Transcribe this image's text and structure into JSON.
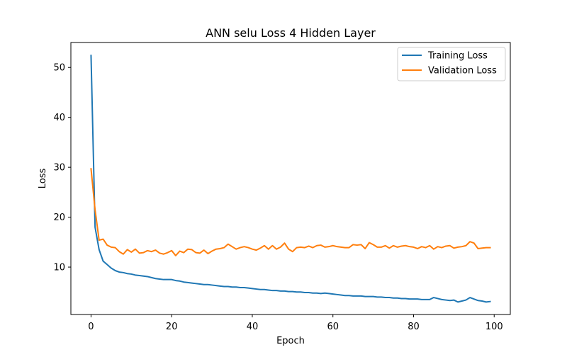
{
  "chart_data": {
    "type": "line",
    "title": "ANN selu Loss 4 Hidden Layer",
    "xlabel": "Epoch",
    "ylabel": "Loss",
    "xlim": [
      -5,
      104
    ],
    "ylim": [
      0.5,
      55
    ],
    "xticks": [
      0,
      20,
      40,
      60,
      80,
      100
    ],
    "yticks": [
      10,
      20,
      30,
      40,
      50
    ],
    "grid": false,
    "legend_position": "top-right",
    "x": [
      0,
      1,
      2,
      3,
      4,
      5,
      6,
      7,
      8,
      9,
      10,
      11,
      12,
      13,
      14,
      15,
      16,
      17,
      18,
      19,
      20,
      21,
      22,
      23,
      24,
      25,
      26,
      27,
      28,
      29,
      30,
      31,
      32,
      33,
      34,
      35,
      36,
      37,
      38,
      39,
      40,
      41,
      42,
      43,
      44,
      45,
      46,
      47,
      48,
      49,
      50,
      51,
      52,
      53,
      54,
      55,
      56,
      57,
      58,
      59,
      60,
      61,
      62,
      63,
      64,
      65,
      66,
      67,
      68,
      69,
      70,
      71,
      72,
      73,
      74,
      75,
      76,
      77,
      78,
      79,
      80,
      81,
      82,
      83,
      84,
      85,
      86,
      87,
      88,
      89,
      90,
      91,
      92,
      93,
      94,
      95,
      96,
      97,
      98,
      99
    ],
    "series": [
      {
        "name": "Training Loss",
        "color": "#1f77b4",
        "values": [
          52.4,
          18.0,
          13.5,
          11.2,
          10.5,
          9.8,
          9.3,
          9.0,
          8.9,
          8.7,
          8.6,
          8.4,
          8.3,
          8.2,
          8.1,
          7.9,
          7.7,
          7.6,
          7.5,
          7.5,
          7.5,
          7.3,
          7.2,
          7.0,
          6.9,
          6.8,
          6.7,
          6.6,
          6.5,
          6.5,
          6.4,
          6.3,
          6.2,
          6.1,
          6.1,
          6.0,
          6.0,
          5.9,
          5.9,
          5.8,
          5.7,
          5.6,
          5.5,
          5.5,
          5.4,
          5.3,
          5.3,
          5.2,
          5.2,
          5.1,
          5.1,
          5.0,
          5.0,
          4.9,
          4.9,
          4.8,
          4.8,
          4.7,
          4.8,
          4.7,
          4.6,
          4.5,
          4.4,
          4.3,
          4.3,
          4.2,
          4.2,
          4.2,
          4.1,
          4.1,
          4.1,
          4.0,
          4.0,
          3.9,
          3.9,
          3.8,
          3.8,
          3.7,
          3.7,
          3.6,
          3.6,
          3.6,
          3.5,
          3.5,
          3.5,
          3.9,
          3.7,
          3.5,
          3.4,
          3.3,
          3.4,
          3.0,
          3.2,
          3.4,
          3.9,
          3.6,
          3.3,
          3.2,
          3.0,
          3.1
        ]
      },
      {
        "name": "Validation Loss",
        "color": "#ff7f0e",
        "values": [
          29.7,
          21.5,
          15.4,
          15.6,
          14.4,
          14.0,
          13.9,
          13.1,
          12.6,
          13.5,
          13.0,
          13.6,
          12.8,
          12.9,
          13.3,
          13.1,
          13.4,
          12.8,
          12.6,
          12.9,
          13.3,
          12.3,
          13.2,
          12.9,
          13.6,
          13.5,
          12.9,
          12.8,
          13.4,
          12.7,
          13.2,
          13.6,
          13.7,
          13.9,
          14.6,
          14.1,
          13.6,
          13.9,
          14.1,
          13.9,
          13.6,
          13.4,
          13.8,
          14.3,
          13.6,
          14.3,
          13.6,
          14.0,
          14.8,
          13.6,
          13.1,
          13.9,
          14.0,
          13.9,
          14.2,
          13.9,
          14.3,
          14.4,
          14.0,
          14.1,
          14.3,
          14.1,
          14.0,
          13.9,
          13.9,
          14.5,
          14.4,
          14.5,
          13.7,
          14.9,
          14.5,
          14.0,
          14.0,
          14.3,
          13.8,
          14.3,
          14.0,
          14.2,
          14.3,
          14.1,
          14.0,
          13.7,
          14.1,
          13.9,
          14.3,
          13.6,
          14.1,
          13.9,
          14.2,
          14.3,
          13.8,
          14.0,
          14.1,
          14.3,
          15.1,
          14.8,
          13.7,
          13.8,
          13.9,
          13.9
        ]
      }
    ]
  }
}
